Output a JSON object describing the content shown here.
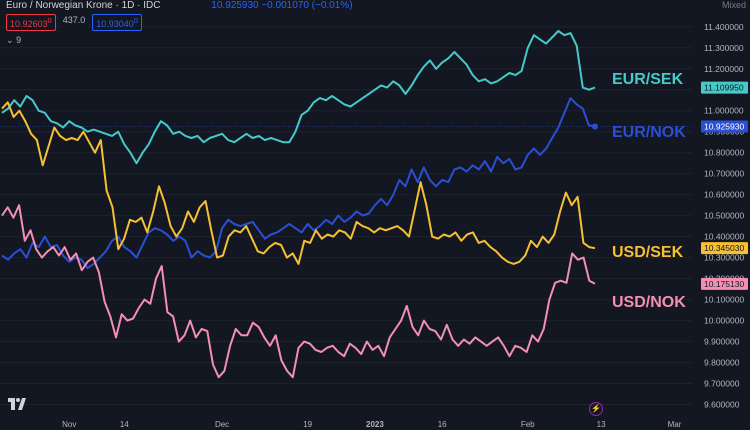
{
  "header": {
    "title": "Euro / Norwegian Krone · 1D · IDC",
    "quote": "10.925930 −0.001070 (−0.01%)"
  },
  "tags": {
    "bid": "10.92603",
    "bid_sup": "0",
    "spread": "437.0",
    "ask": "10.93040",
    "ask_sup": "0",
    "collapse": "9"
  },
  "scale_label": "Mixed",
  "icons": {
    "logo": "tradingview-logo-icon",
    "collapse": "chevron-down-icon",
    "alert": "flash-icon"
  },
  "colors": {
    "EUR/SEK": "#45c9c9",
    "EUR/NOK": "#2b4fd4",
    "USD/SEK": "#f7bf32",
    "USD/NOK": "#f48fb1"
  },
  "chart_data": {
    "type": "line",
    "y_axis": {
      "ticks": [
        9.6,
        9.7,
        9.8,
        9.9,
        10.0,
        10.1,
        10.2,
        10.3,
        10.4,
        10.5,
        10.6,
        10.7,
        10.8,
        10.9,
        11.0,
        11.1,
        11.2,
        11.3,
        11.4
      ],
      "tick_labels": [
        "9.600000",
        "9.700000",
        "9.800000",
        "9.900000",
        "10.000000",
        "10.100000",
        "10.200000",
        "10.300000",
        "10.400000",
        "10.500000",
        "10.600000",
        "10.700000",
        "10.800000",
        "10.900000",
        "11.000000",
        "11.100000",
        "11.200000",
        "11.300000",
        "11.400000"
      ],
      "range": [
        9.55,
        11.48
      ]
    },
    "x_axis": {
      "labels": [
        "Nov",
        "14",
        "Dec",
        "19",
        "2023",
        "16",
        "Feb",
        "13",
        "Mar"
      ],
      "bold_labels": [
        "2023"
      ],
      "label_index": [
        11,
        20,
        36,
        50,
        61,
        72,
        86,
        98,
        110
      ],
      "count": 112
    },
    "series": [
      {
        "name": "EUR/SEK",
        "color": "#45c9c9",
        "last_label": "11.109950",
        "values": [
          10.99,
          11.01,
          11.05,
          11.02,
          11.07,
          11.05,
          11.0,
          10.99,
          10.95,
          10.94,
          10.92,
          10.95,
          10.93,
          10.92,
          10.9,
          10.91,
          10.9,
          10.89,
          10.88,
          10.9,
          10.84,
          10.8,
          10.75,
          10.8,
          10.84,
          10.9,
          10.95,
          10.93,
          10.89,
          10.9,
          10.88,
          10.87,
          10.88,
          10.85,
          10.87,
          10.88,
          10.89,
          10.86,
          10.85,
          10.87,
          10.89,
          10.87,
          10.88,
          10.86,
          10.87,
          10.86,
          10.85,
          10.85,
          10.9,
          10.98,
          11.0,
          11.04,
          11.06,
          11.05,
          11.07,
          11.05,
          11.03,
          11.02,
          11.04,
          11.06,
          11.08,
          11.1,
          11.12,
          11.11,
          11.14,
          11.12,
          11.08,
          11.12,
          11.17,
          11.21,
          11.24,
          11.2,
          11.23,
          11.25,
          11.28,
          11.25,
          11.22,
          11.17,
          11.14,
          11.15,
          11.13,
          11.14,
          11.16,
          11.18,
          11.17,
          11.19,
          11.3,
          11.36,
          11.34,
          11.32,
          11.35,
          11.38,
          11.36,
          11.37,
          11.31,
          11.11,
          11.1,
          11.11
        ]
      },
      {
        "name": "EUR/NOK",
        "color": "#2b4fd4",
        "last_label": "10.925930",
        "values": [
          10.31,
          10.29,
          10.32,
          10.34,
          10.3,
          10.37,
          10.35,
          10.4,
          10.35,
          10.36,
          10.31,
          10.28,
          10.3,
          10.29,
          10.25,
          10.27,
          10.3,
          10.33,
          10.38,
          10.4,
          10.35,
          10.33,
          10.3,
          10.36,
          10.42,
          10.44,
          10.43,
          10.41,
          10.38,
          10.4,
          10.38,
          10.3,
          10.33,
          10.31,
          10.3,
          10.33,
          10.44,
          10.48,
          10.46,
          10.45,
          10.46,
          10.47,
          10.43,
          10.39,
          10.41,
          10.42,
          10.44,
          10.46,
          10.44,
          10.42,
          10.46,
          10.43,
          10.45,
          10.48,
          10.46,
          10.5,
          10.47,
          10.49,
          10.52,
          10.5,
          10.51,
          10.55,
          10.58,
          10.55,
          10.6,
          10.67,
          10.64,
          10.72,
          10.66,
          10.73,
          10.67,
          10.64,
          10.67,
          10.66,
          10.72,
          10.73,
          10.71,
          10.74,
          10.72,
          10.76,
          10.71,
          10.78,
          10.75,
          10.77,
          10.72,
          10.73,
          10.79,
          10.82,
          10.79,
          10.82,
          10.87,
          10.92,
          10.99,
          11.06,
          11.03,
          11.01,
          10.93,
          10.925
        ]
      },
      {
        "name": "USD/SEK",
        "color": "#f7bf32",
        "last_label": "10.345030",
        "values": [
          11.01,
          11.04,
          10.97,
          11.0,
          10.95,
          10.89,
          10.86,
          10.74,
          10.83,
          10.92,
          10.88,
          10.86,
          10.87,
          10.86,
          10.9,
          10.85,
          10.8,
          10.86,
          10.62,
          10.54,
          10.34,
          10.39,
          10.48,
          10.47,
          10.49,
          10.42,
          10.52,
          10.64,
          10.56,
          10.45,
          10.4,
          10.44,
          10.52,
          10.47,
          10.54,
          10.57,
          10.43,
          10.3,
          10.31,
          10.4,
          10.43,
          10.42,
          10.45,
          10.39,
          10.33,
          10.32,
          10.35,
          10.37,
          10.36,
          10.3,
          10.32,
          10.27,
          10.38,
          10.37,
          10.43,
          10.39,
          10.41,
          10.4,
          10.43,
          10.42,
          10.39,
          10.47,
          10.45,
          10.44,
          10.42,
          10.44,
          10.43,
          10.44,
          10.45,
          10.43,
          10.4,
          10.53,
          10.66,
          10.55,
          10.4,
          10.39,
          10.41,
          10.4,
          10.42,
          10.38,
          10.41,
          10.42,
          10.37,
          10.38,
          10.35,
          10.33,
          10.3,
          10.28,
          10.27,
          10.28,
          10.31,
          10.38,
          10.35,
          10.4,
          10.37,
          10.41,
          10.52,
          10.61,
          10.55,
          10.59,
          10.37,
          10.35,
          10.345
        ]
      },
      {
        "name": "USD/NOK",
        "color": "#f48fb1",
        "last_label": "10.175130",
        "values": [
          10.5,
          10.54,
          10.49,
          10.55,
          10.38,
          10.43,
          10.34,
          10.3,
          10.33,
          10.35,
          10.31,
          10.35,
          10.29,
          10.32,
          10.24,
          10.28,
          10.3,
          10.23,
          10.09,
          10.02,
          9.92,
          10.03,
          10.0,
          10.01,
          10.06,
          10.1,
          10.08,
          10.2,
          10.26,
          10.04,
          10.02,
          9.9,
          9.93,
          10.0,
          9.92,
          9.96,
          9.95,
          9.79,
          9.73,
          9.76,
          9.88,
          9.96,
          9.93,
          9.93,
          9.99,
          9.97,
          9.92,
          9.88,
          9.93,
          9.81,
          9.76,
          9.73,
          9.87,
          9.9,
          9.89,
          9.86,
          9.85,
          9.87,
          9.88,
          9.85,
          9.83,
          9.89,
          9.87,
          9.84,
          9.9,
          9.86,
          9.88,
          9.83,
          9.92,
          9.96,
          10.0,
          10.07,
          9.97,
          9.93,
          10.0,
          9.96,
          9.95,
          9.91,
          9.98,
          9.91,
          9.88,
          9.91,
          9.89,
          9.92,
          9.9,
          9.88,
          9.9,
          9.92,
          9.88,
          9.83,
          9.88,
          9.87,
          9.85,
          9.93,
          9.9,
          9.96,
          10.1,
          10.18,
          10.19,
          10.18,
          10.32,
          10.29,
          10.3,
          10.19,
          10.175
        ]
      }
    ]
  }
}
